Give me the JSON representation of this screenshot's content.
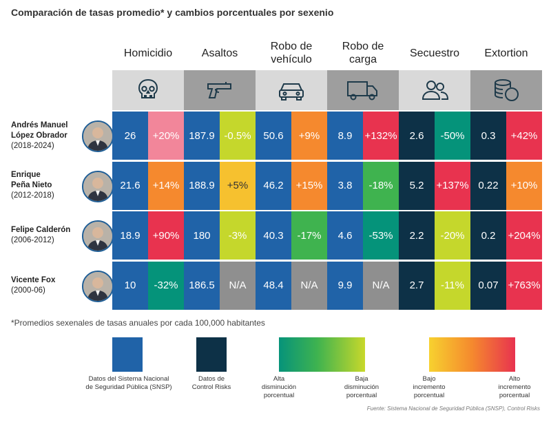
{
  "title": "Comparación de tasas promedio* y cambios porcentuales por sexenio",
  "chart_data": {
    "type": "table",
    "categories": [
      {
        "label": "Homicidio",
        "icon": "skull-icon"
      },
      {
        "label": "Asaltos",
        "icon": "gun-icon"
      },
      {
        "label": "Robo de vehículo",
        "icon": "car-icon"
      },
      {
        "label": "Robo de carga",
        "icon": "truck-icon"
      },
      {
        "label": "Secuestro",
        "icon": "people-icon"
      },
      {
        "label": "Extortion",
        "icon": "coins-icon"
      }
    ],
    "rows": [
      {
        "name_line1": "Andrés Manuel",
        "name_line2": "López Obrador",
        "years": "(2018-2024)",
        "cells": [
          {
            "value": "26",
            "kind": "snsp"
          },
          {
            "value": "+20%",
            "kind": "change",
            "change": 20
          },
          {
            "value": "187.9",
            "kind": "snsp"
          },
          {
            "value": "-0.5%",
            "kind": "change",
            "change": -0.5
          },
          {
            "value": "50.6",
            "kind": "snsp"
          },
          {
            "value": "+9%",
            "kind": "change",
            "change": 9
          },
          {
            "value": "8.9",
            "kind": "snsp"
          },
          {
            "value": "+132%",
            "kind": "change",
            "change": 132
          },
          {
            "value": "2.6",
            "kind": "cr"
          },
          {
            "value": "-50%",
            "kind": "change",
            "change": -50
          },
          {
            "value": "0.3",
            "kind": "cr"
          },
          {
            "value": "+42%",
            "kind": "change",
            "change": 42
          }
        ]
      },
      {
        "name_line1": "Enrique",
        "name_line2": "Peña Nieto",
        "years": "(2012-2018)",
        "cells": [
          {
            "value": "21.6",
            "kind": "snsp"
          },
          {
            "value": "+14%",
            "kind": "change",
            "change": 14
          },
          {
            "value": "188.9",
            "kind": "snsp"
          },
          {
            "value": "+5%",
            "kind": "change",
            "change": 5
          },
          {
            "value": "46.2",
            "kind": "snsp"
          },
          {
            "value": "+15%",
            "kind": "change",
            "change": 15
          },
          {
            "value": "3.8",
            "kind": "snsp"
          },
          {
            "value": "-18%",
            "kind": "change",
            "change": -18
          },
          {
            "value": "5.2",
            "kind": "cr"
          },
          {
            "value": "+137%",
            "kind": "change",
            "change": 137
          },
          {
            "value": "0.22",
            "kind": "cr"
          },
          {
            "value": "+10%",
            "kind": "change",
            "change": 10
          }
        ]
      },
      {
        "name_line1": "Felipe Calderón",
        "name_line2": "",
        "years": "(2006-2012)",
        "cells": [
          {
            "value": "18.9",
            "kind": "snsp"
          },
          {
            "value": "+90%",
            "kind": "change",
            "change": 90
          },
          {
            "value": "180",
            "kind": "snsp"
          },
          {
            "value": "-3%",
            "kind": "change",
            "change": -3
          },
          {
            "value": "40.3",
            "kind": "snsp"
          },
          {
            "value": "-17%",
            "kind": "change",
            "change": -17
          },
          {
            "value": "4.6",
            "kind": "snsp"
          },
          {
            "value": "-53%",
            "kind": "change",
            "change": -53
          },
          {
            "value": "2.2",
            "kind": "cr"
          },
          {
            "value": "-20%",
            "kind": "change",
            "change": -20
          },
          {
            "value": "0.2",
            "kind": "cr"
          },
          {
            "value": "+204%",
            "kind": "change",
            "change": 204
          }
        ]
      },
      {
        "name_line1": "Vicente Fox",
        "name_line2": "",
        "years": "(2000-06)",
        "cells": [
          {
            "value": "10",
            "kind": "snsp"
          },
          {
            "value": "-32%",
            "kind": "change",
            "change": -32
          },
          {
            "value": "186.5",
            "kind": "snsp"
          },
          {
            "value": "N/A",
            "kind": "na"
          },
          {
            "value": "48.4",
            "kind": "snsp"
          },
          {
            "value": "N/A",
            "kind": "na"
          },
          {
            "value": "9.9",
            "kind": "snsp"
          },
          {
            "value": "N/A",
            "kind": "na"
          },
          {
            "value": "2.7",
            "kind": "cr"
          },
          {
            "value": "-11%",
            "kind": "change",
            "change": -11
          },
          {
            "value": "0.07",
            "kind": "cr"
          },
          {
            "value": "+763%",
            "kind": "change",
            "change": 763
          }
        ]
      }
    ],
    "colors": {
      "snsp": "#2063a8",
      "cr": "#0d3147",
      "na": "#8f8f8f",
      "dec_high": "#05937a",
      "dec_mid": "#3fb34f",
      "dec_low": "#c5d72c",
      "inc_low": "#f6c12f",
      "inc_mid": "#f5892e",
      "inc_high": "#e8334f",
      "inc_low_pink": "#f2869a"
    }
  },
  "footnote": "*Promedios sexenales de tasas anuales por cada 100,000 habitantes",
  "legend": {
    "snsp_line1": "Datos del Sistema Nacional",
    "snsp_line2": "de Seguridad Pública (SNSP)",
    "cr_line1": "Datos de",
    "cr_line2": "Control Risks",
    "dec_high_line1": "Alta",
    "dec_high_line2": "disminución",
    "dec_high_line3": "porcentual",
    "dec_low_line1": "Baja",
    "dec_low_line2": "disminución",
    "dec_low_line3": "porcentual",
    "inc_low_line1": "Bajo",
    "inc_low_line2": "incremento",
    "inc_low_line3": "porcentual",
    "inc_high_line1": "Alto",
    "inc_high_line2": "incremento",
    "inc_high_line3": "porcentual"
  },
  "source": "Fuente: Sistema Nacional de Seguridad Pública (SNSP), Control Risks"
}
